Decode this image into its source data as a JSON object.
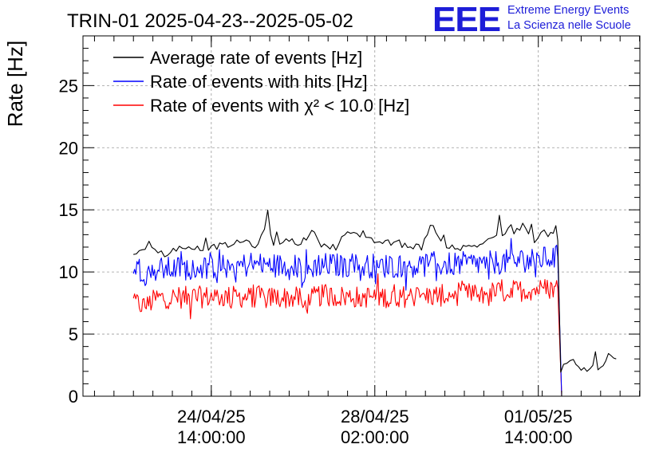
{
  "chart_data": {
    "type": "line",
    "title": "TRIN-01 2025-04-23--2025-05-02",
    "ylabel": "Rate [Hz]",
    "xlabel": "",
    "ylim": [
      0,
      29
    ],
    "yticks": [
      0,
      5,
      10,
      15,
      20,
      25
    ],
    "xticks": [
      {
        "t": "2025-04-24T14:00:00",
        "line1": "24/04/25",
        "line2": "14:00:00"
      },
      {
        "t": "2025-04-28T02:00:00",
        "line1": "28/04/25",
        "line2": "02:00:00"
      },
      {
        "t": "2025-05-01T14:00:00",
        "line1": "01/05/25",
        "line2": "14:00:00"
      }
    ],
    "xlim": [
      "2025-04-21T20:05:00",
      "2025-05-03T18:10:00"
    ],
    "grid": true,
    "legend_position": "top-left",
    "series": [
      {
        "name": "Average rate of events [Hz]",
        "color": "#000000",
        "noise": 0.25,
        "points": [
          [
            "2025-04-22T22:00:00",
            11.5
          ],
          [
            "2025-04-23T04:00:00",
            12.0
          ],
          [
            "2025-04-23T06:00:00",
            12.6
          ],
          [
            "2025-04-23T09:00:00",
            11.7
          ],
          [
            "2025-04-23T14:00:00",
            11.4
          ],
          [
            "2025-04-23T20:00:00",
            11.9
          ],
          [
            "2025-04-24T04:00:00",
            11.8
          ],
          [
            "2025-04-24T14:00:00",
            12.0
          ],
          [
            "2025-04-25T00:00:00",
            12.2
          ],
          [
            "2025-04-25T08:00:00",
            12.5
          ],
          [
            "2025-04-25T14:00:00",
            12.0
          ],
          [
            "2025-04-25T19:00:00",
            14.2
          ],
          [
            "2025-04-25T22:00:00",
            12.3
          ],
          [
            "2025-04-26T06:00:00",
            12.6
          ],
          [
            "2025-04-26T12:00:00",
            12.3
          ],
          [
            "2025-04-26T19:00:00",
            13.4
          ],
          [
            "2025-04-26T21:00:00",
            12.3
          ],
          [
            "2025-04-27T06:00:00",
            12.0
          ],
          [
            "2025-04-27T12:00:00",
            13.3
          ],
          [
            "2025-04-27T20:00:00",
            12.6
          ],
          [
            "2025-04-28T06:00:00",
            12.4
          ],
          [
            "2025-04-28T16:00:00",
            12.2
          ],
          [
            "2025-04-29T02:00:00",
            12.0
          ],
          [
            "2025-04-29T08:00:00",
            13.8
          ],
          [
            "2025-04-29T12:00:00",
            12.3
          ],
          [
            "2025-04-29T22:00:00",
            11.9
          ],
          [
            "2025-04-30T08:00:00",
            12.2
          ],
          [
            "2025-04-30T18:00:00",
            13.2
          ],
          [
            "2025-05-01T00:00:00",
            12.7
          ],
          [
            "2025-05-01T06:00:00",
            13.9
          ],
          [
            "2025-05-01T12:00:00",
            12.2
          ],
          [
            "2025-05-01T17:00:00",
            13.4
          ],
          [
            "2025-05-01T19:00:00",
            12.8
          ],
          [
            "2025-05-01T23:00:00",
            13.6
          ],
          [
            "2025-05-02T00:00:00",
            12.5
          ],
          [
            "2025-05-02T01:30:00",
            1.9
          ],
          [
            "2025-05-02T03:00:00",
            2.7
          ],
          [
            "2025-05-02T08:00:00",
            2.8
          ],
          [
            "2025-05-02T12:00:00",
            2.1
          ],
          [
            "2025-05-02T18:00:00",
            2.3
          ],
          [
            "2025-05-02T22:00:00",
            2.4
          ],
          [
            "2025-05-03T02:00:00",
            3.2
          ],
          [
            "2025-05-03T06:00:00",
            3.0
          ]
        ]
      },
      {
        "name": "Rate of events with hits [Hz]",
        "color": "#0000ff",
        "noise": 1.0,
        "points": [
          [
            "2025-04-22T22:00:00",
            10.6
          ],
          [
            "2025-04-23T04:00:00",
            9.9
          ],
          [
            "2025-04-23T10:00:00",
            10.2
          ],
          [
            "2025-04-24T14:00:00",
            10.4
          ],
          [
            "2025-04-25T14:00:00",
            10.6
          ],
          [
            "2025-04-26T12:00:00",
            10.4
          ],
          [
            "2025-04-26T12:30:00",
            9.6
          ],
          [
            "2025-04-26T20:00:00",
            10.6
          ],
          [
            "2025-04-27T12:00:00",
            10.5
          ],
          [
            "2025-04-28T12:00:00",
            10.5
          ],
          [
            "2025-04-29T12:00:00",
            10.6
          ],
          [
            "2025-04-30T12:00:00",
            10.7
          ],
          [
            "2025-05-01T12:00:00",
            11.0
          ],
          [
            "2025-05-02T00:00:00",
            11.2
          ],
          [
            "2025-05-02T02:00:00",
            0
          ]
        ]
      },
      {
        "name": "Rate of events with χ² < 10.0 [Hz]",
        "color": "#ff0000",
        "noise": 0.9,
        "points": [
          [
            "2025-04-22T22:00:00",
            7.6
          ],
          [
            "2025-04-23T04:00:00",
            7.2
          ],
          [
            "2025-04-23T10:00:00",
            7.9
          ],
          [
            "2025-04-24T14:00:00",
            8.0
          ],
          [
            "2025-04-25T14:00:00",
            8.0
          ],
          [
            "2025-04-26T12:00:00",
            7.9
          ],
          [
            "2025-04-26T12:30:00",
            7.1
          ],
          [
            "2025-04-26T20:00:00",
            8.1
          ],
          [
            "2025-04-27T12:00:00",
            8.0
          ],
          [
            "2025-04-28T12:00:00",
            8.0
          ],
          [
            "2025-04-29T12:00:00",
            8.1
          ],
          [
            "2025-04-30T12:00:00",
            8.3
          ],
          [
            "2025-05-01T12:00:00",
            8.6
          ],
          [
            "2025-05-02T00:00:00",
            8.7
          ],
          [
            "2025-05-02T02:00:00",
            0
          ],
          [
            "2025-05-03T06:00:00",
            0
          ]
        ]
      }
    ]
  },
  "logo": {
    "letters": "EEE",
    "line1": "Extreme Energy Events",
    "line2": "La Scienza nelle Scuole"
  }
}
